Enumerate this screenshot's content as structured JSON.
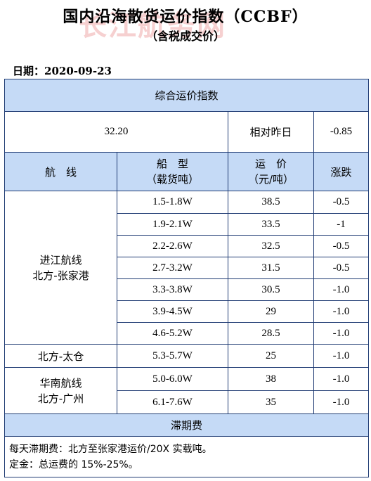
{
  "title": "国内沿海散货运价指数（CCBF）",
  "subtitle": "（含税成交价）",
  "watermark": "长江航务网",
  "date_label": "日期：",
  "date_value": "2020-09-23",
  "composite": {
    "header": "综合运价指数",
    "value": "32.20",
    "compare_label": "相对昨日",
    "change": "-0.85"
  },
  "columns": {
    "route": "航　线",
    "ship_l1": "船　型",
    "ship_l2": "（载货吨）",
    "price_l1": "运　价",
    "price_l2": "（元/吨）",
    "change": "涨跌"
  },
  "groups": {
    "g1": {
      "l1": "进江航线",
      "l2": "北方-张家港"
    },
    "g2": {
      "l1": "北方-太仓"
    },
    "g3": {
      "l1": "华南航线",
      "l2": "北方-广州"
    }
  },
  "rows": [
    {
      "ship": "1.5-1.8W",
      "price": "38.5",
      "change": "-0.5"
    },
    {
      "ship": "1.9-2.1W",
      "price": "33.5",
      "change": "-1"
    },
    {
      "ship": "2.2-2.6W",
      "price": "32.5",
      "change": "-0.5"
    },
    {
      "ship": "2.7-3.2W",
      "price": "31.5",
      "change": "-0.5"
    },
    {
      "ship": "3.3-3.8W",
      "price": "30.5",
      "change": "-1.0"
    },
    {
      "ship": "3.9-4.5W",
      "price": "29",
      "change": "-1.0"
    },
    {
      "ship": "4.6-5.2W",
      "price": "28.5",
      "change": "-1.0"
    },
    {
      "ship": "5.3-5.7W",
      "price": "25",
      "change": "-1.0"
    },
    {
      "ship": "5.0-6.0W",
      "price": "38",
      "change": "-1.0"
    },
    {
      "ship": "6.1-7.6W",
      "price": "35",
      "change": "-1.0"
    }
  ],
  "demurrage": {
    "header": "滞期费",
    "line1": "每天滞期费：北方至张家港运价/20X 实载吨。",
    "line2": "定金：总运费的 15%-25%。"
  }
}
